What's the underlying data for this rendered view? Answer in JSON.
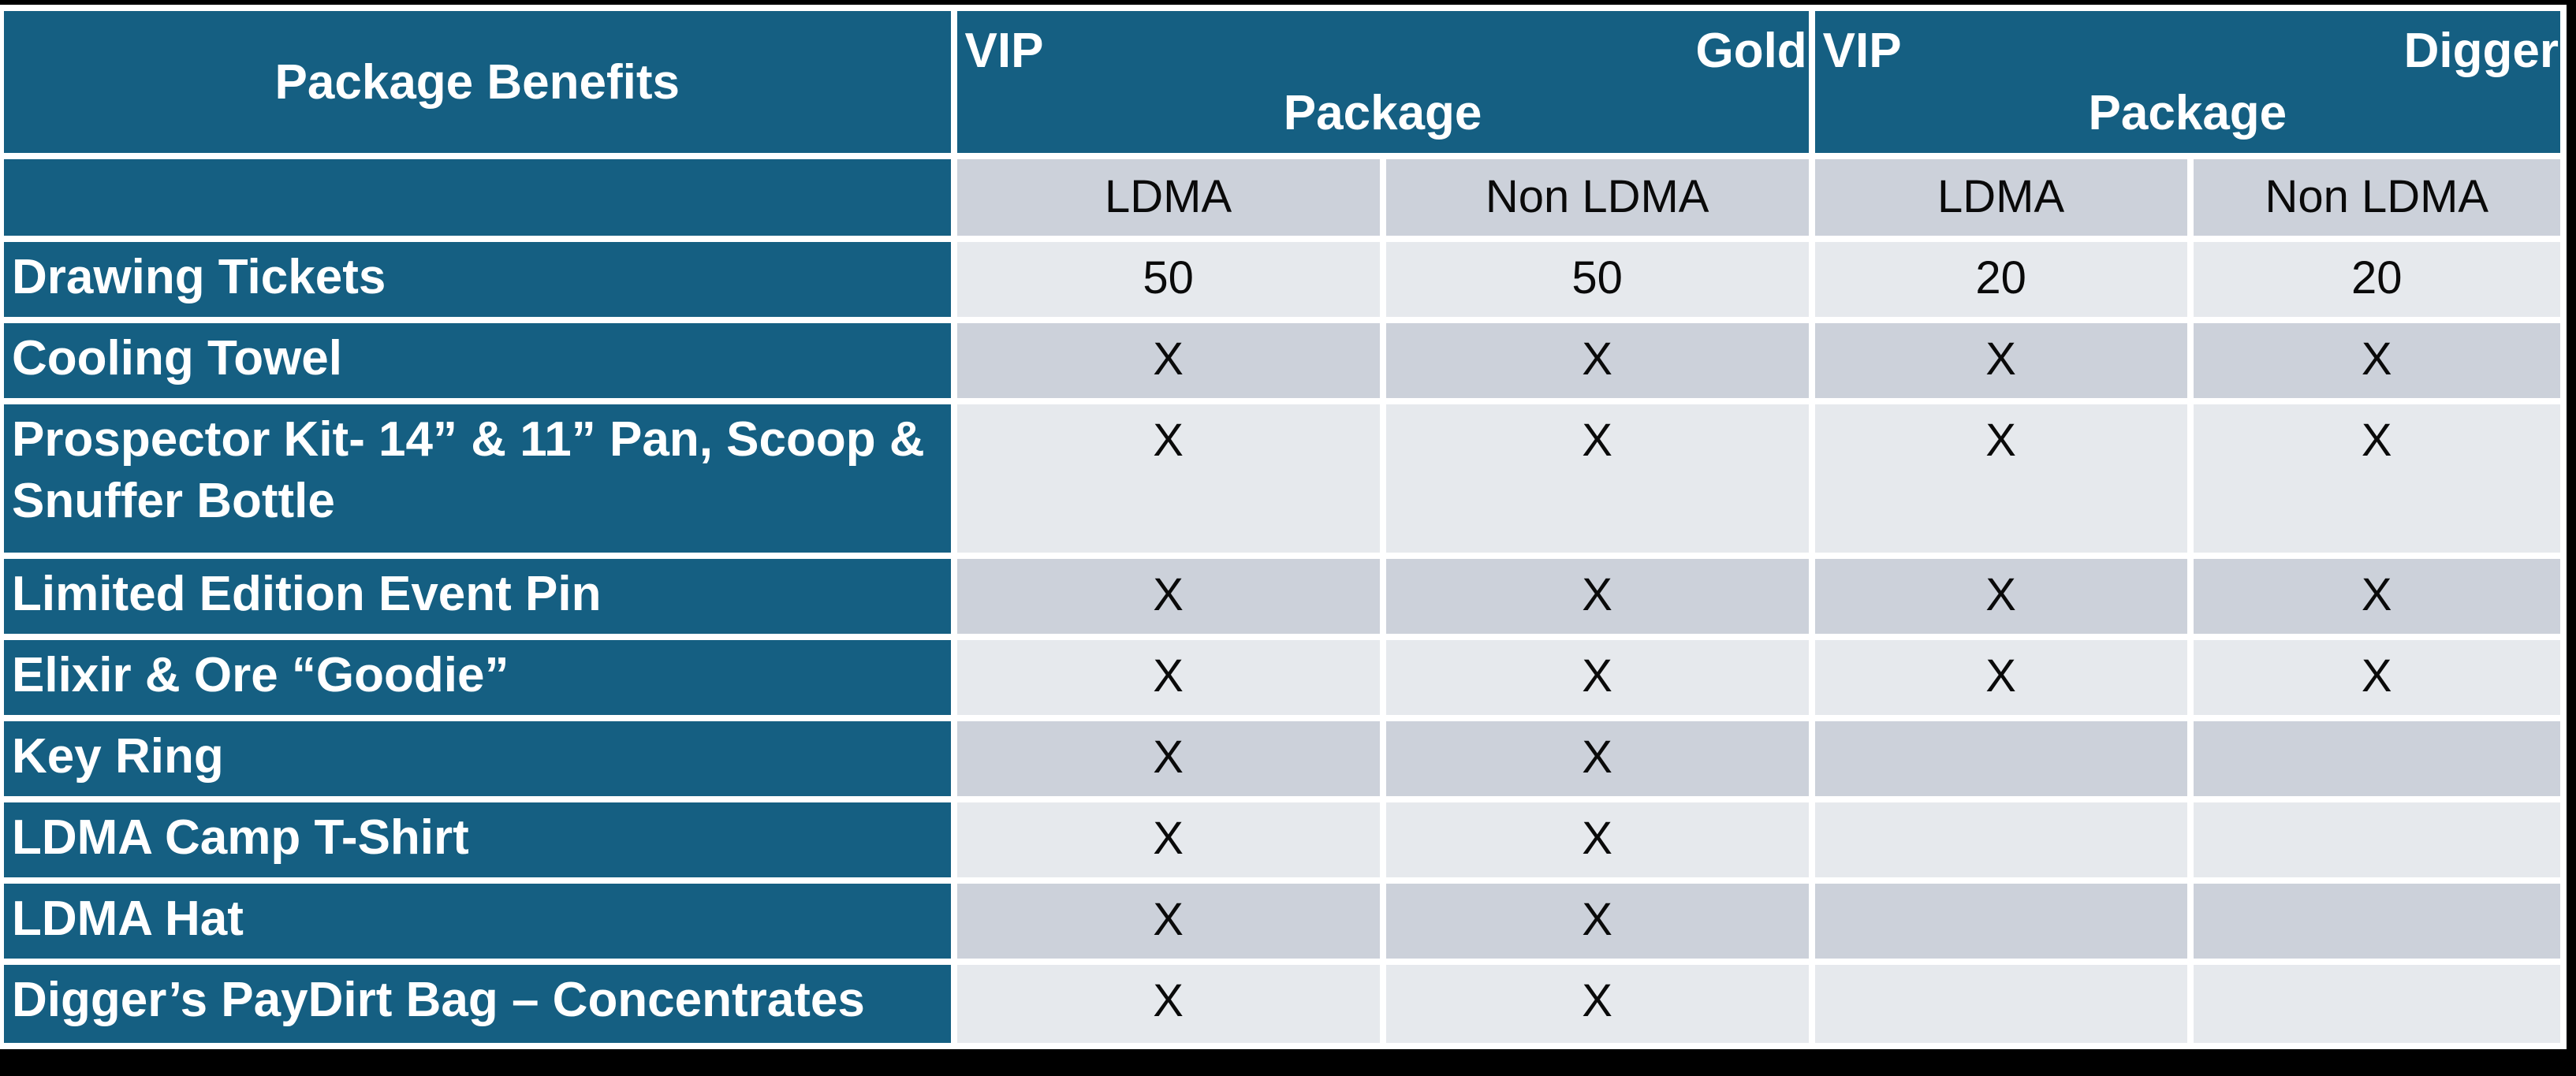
{
  "colors": {
    "table_blue": "#155F82",
    "row_light": "#E6E9ED",
    "row_dark": "#CCD1DA",
    "grid_white": "#FFFFFF",
    "page_background": "#000000",
    "header_text": "#FFFFFF",
    "body_text": "#0A0A0A"
  },
  "table": {
    "corner_header": "Package Benefits",
    "groups": [
      {
        "name_left": "VIP",
        "name_right": "Gold",
        "name_line2": "Package"
      },
      {
        "name_left": "VIP",
        "name_right": "Digger",
        "name_line2": "Package"
      }
    ],
    "subheaders": [
      "LDMA",
      "Non LDMA",
      "LDMA",
      "Non LDMA"
    ],
    "rows": [
      {
        "label": "Drawing Tickets",
        "values": [
          "50",
          "50",
          "20",
          "20"
        ]
      },
      {
        "label": "Cooling Towel",
        "values": [
          "X",
          "X",
          "X",
          "X"
        ]
      },
      {
        "label": "Prospector Kit- 14” & 11” Pan, Scoop & Snuffer Bottle",
        "values": [
          "X",
          "X",
          "X",
          "X"
        ]
      },
      {
        "label": "Limited Edition Event Pin",
        "values": [
          "X",
          "X",
          "X",
          "X"
        ]
      },
      {
        "label": "Elixir & Ore “Goodie”",
        "values": [
          "X",
          "X",
          "X",
          "X"
        ]
      },
      {
        "label": "Key Ring",
        "values": [
          "X",
          "X",
          "",
          ""
        ]
      },
      {
        "label": "LDMA Camp T-Shirt",
        "values": [
          "X",
          "X",
          "",
          ""
        ]
      },
      {
        "label": "LDMA Hat",
        "values": [
          "X",
          "X",
          "",
          ""
        ]
      },
      {
        "label": "Digger’s PayDirt Bag – Concentrates",
        "values": [
          "X",
          "X",
          "",
          ""
        ]
      }
    ]
  }
}
